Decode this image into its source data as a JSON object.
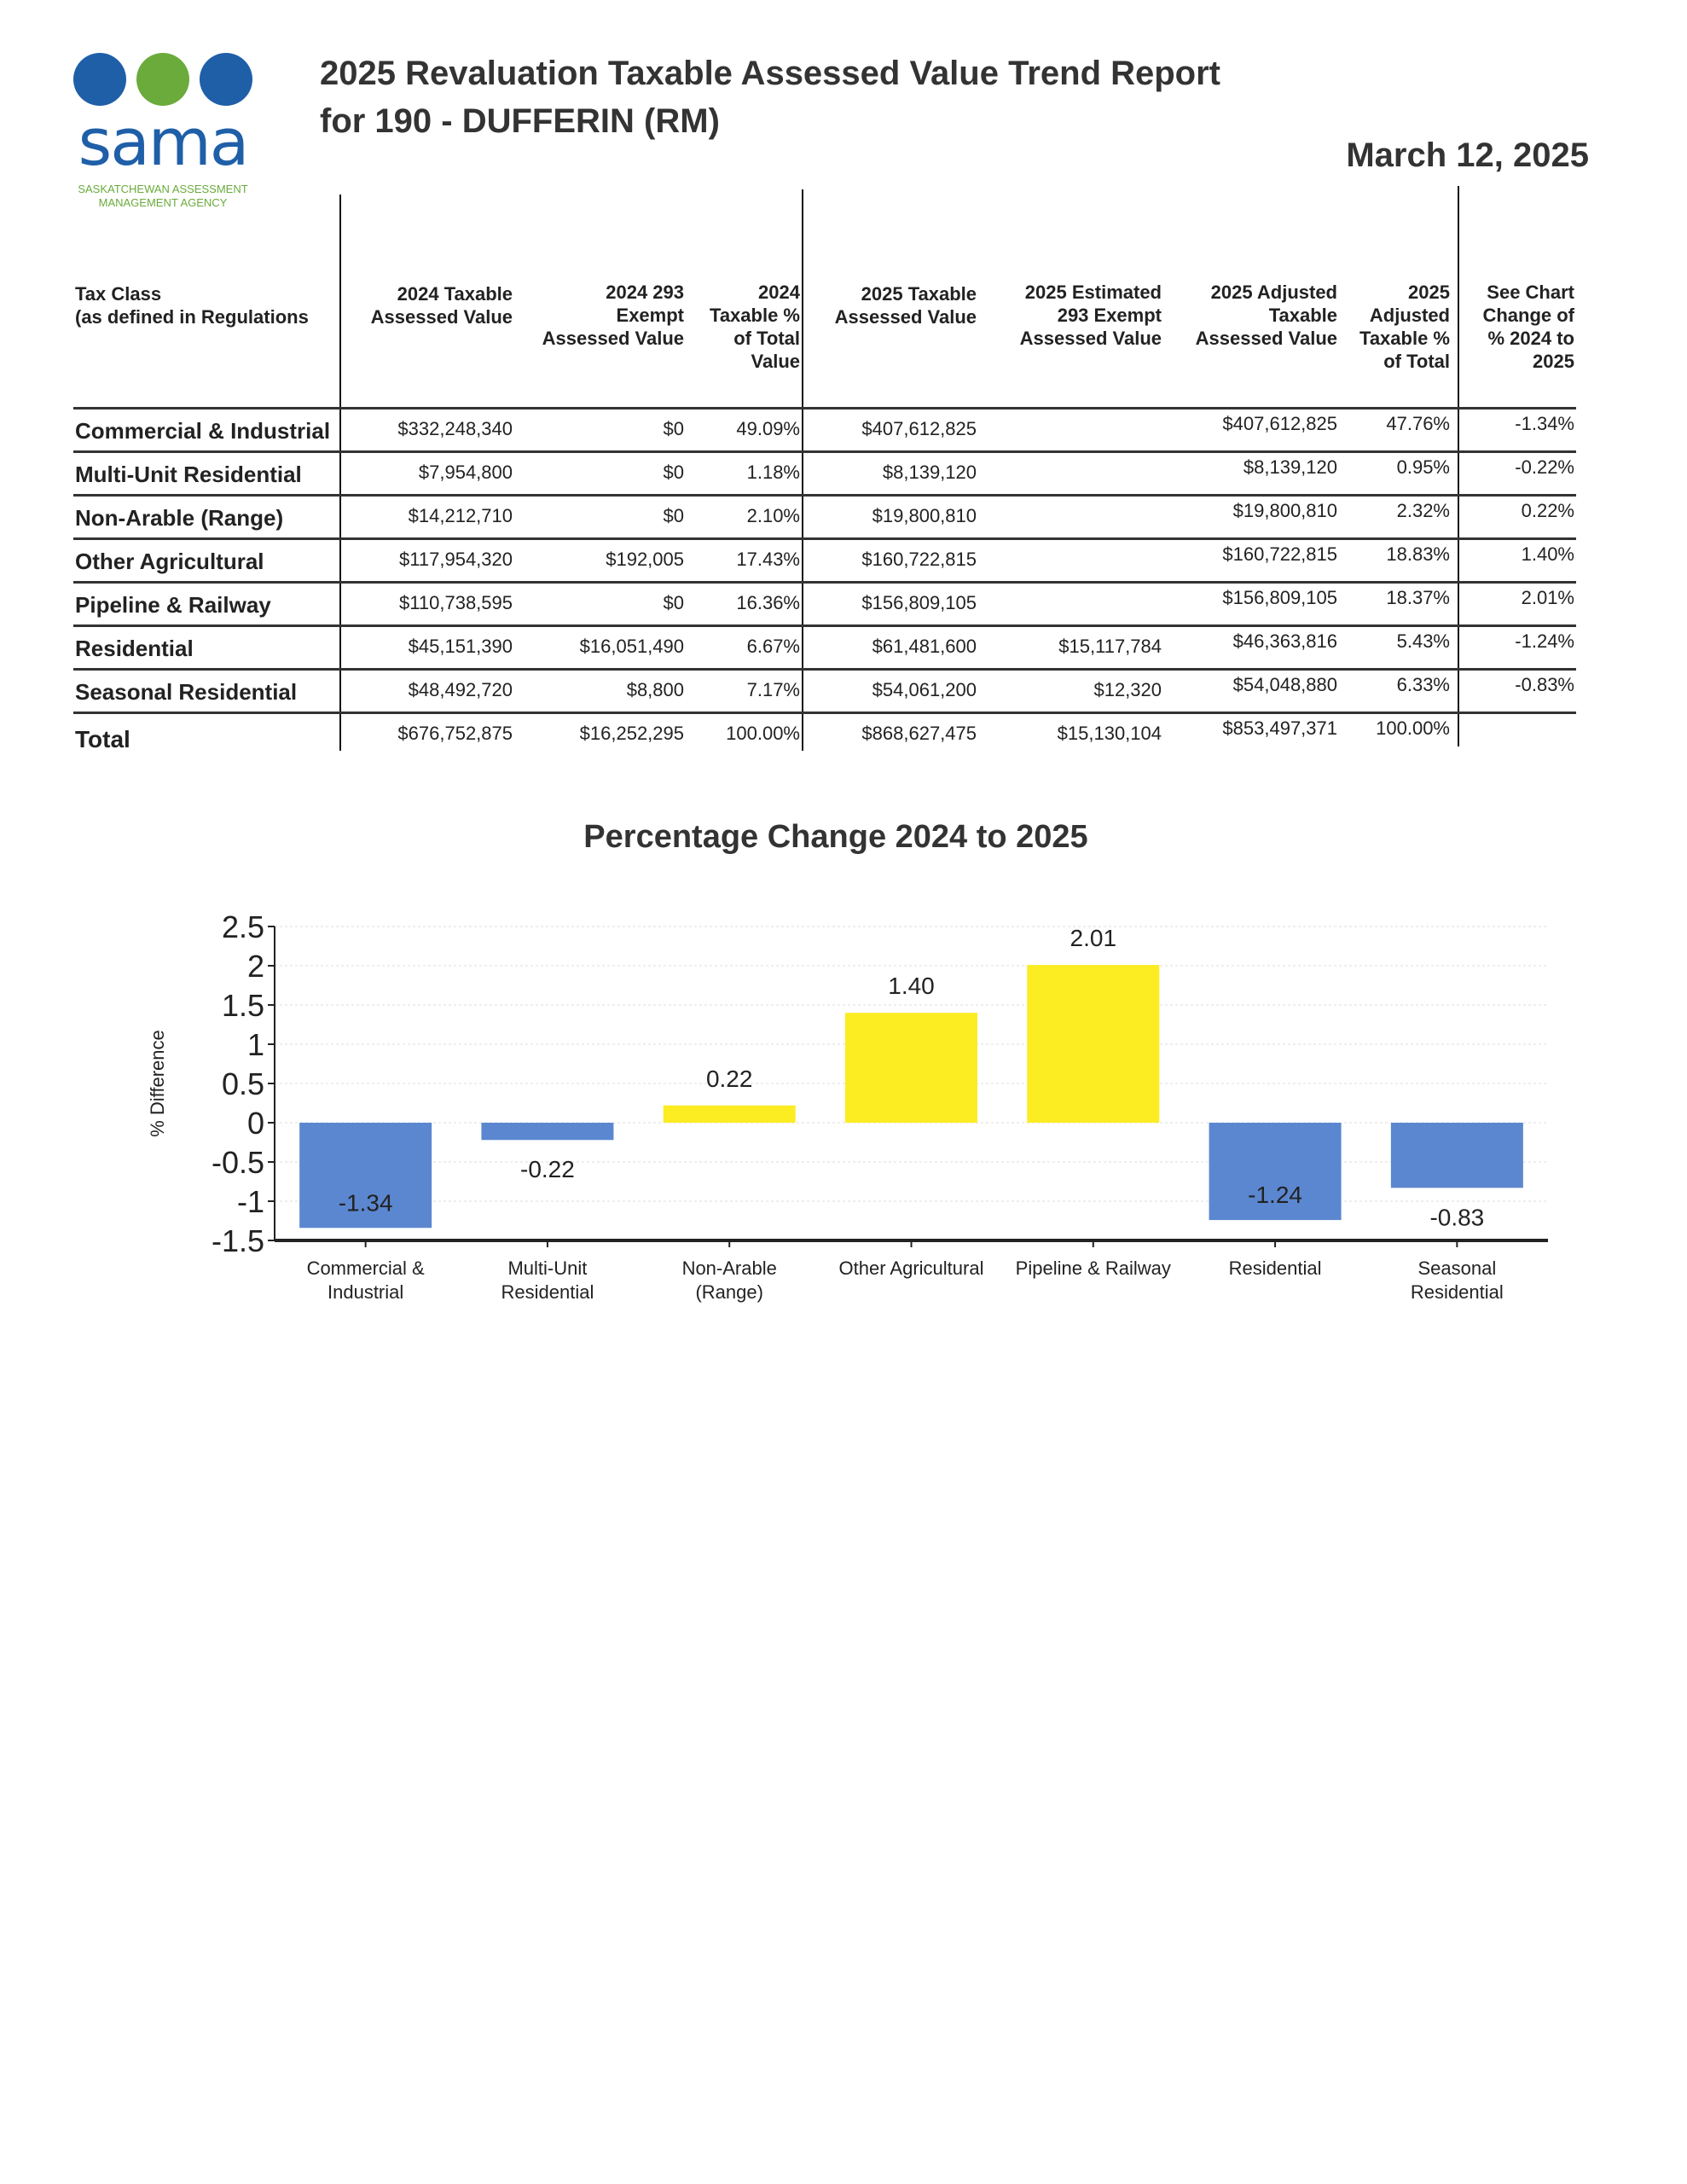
{
  "logo": {
    "word": "sama",
    "subtitle_1": "SASKATCHEWAN ASSESSMENT",
    "subtitle_2": "MANAGEMENT AGENCY"
  },
  "header": {
    "title_line1": "2025 Revaluation Taxable Assessed Value Trend Report",
    "title_line2": "for 190 - DUFFERIN (RM)",
    "date": "March 12, 2025"
  },
  "table": {
    "columns": [
      [
        "Tax Class",
        "(as defined in Regulations"
      ],
      [
        "2024 Taxable",
        "Assessed Value"
      ],
      [
        "2024 293",
        "Exempt",
        "Assessed Value"
      ],
      [
        "2024",
        "Taxable %",
        "of Total",
        "Value"
      ],
      [
        "2025 Taxable",
        "Assessed Value"
      ],
      [
        "2025 Estimated",
        "293 Exempt",
        "Assessed Value"
      ],
      [
        "2025 Adjusted",
        "Taxable",
        "Assessed Value"
      ],
      [
        "2025",
        "Adjusted",
        "Taxable %",
        "of Total"
      ],
      [
        "See Chart",
        "Change of",
        "% 2024 to",
        "2025"
      ]
    ],
    "rows": [
      [
        "Commercial & Industrial",
        "$332,248,340",
        "$0",
        "49.09%",
        "$407,612,825",
        "",
        "$407,612,825",
        "47.76%",
        "-1.34%"
      ],
      [
        "Multi-Unit Residential",
        "$7,954,800",
        "$0",
        "1.18%",
        "$8,139,120",
        "",
        "$8,139,120",
        "0.95%",
        "-0.22%"
      ],
      [
        "Non-Arable (Range)",
        "$14,212,710",
        "$0",
        "2.10%",
        "$19,800,810",
        "",
        "$19,800,810",
        "2.32%",
        "0.22%"
      ],
      [
        "Other Agricultural",
        "$117,954,320",
        "$192,005",
        "17.43%",
        "$160,722,815",
        "",
        "$160,722,815",
        "18.83%",
        "1.40%"
      ],
      [
        "Pipeline & Railway",
        "$110,738,595",
        "$0",
        "16.36%",
        "$156,809,105",
        "",
        "$156,809,105",
        "18.37%",
        "2.01%"
      ],
      [
        "Residential",
        "$45,151,390",
        "$16,051,490",
        "6.67%",
        "$61,481,600",
        "$15,117,784",
        "$46,363,816",
        "5.43%",
        "-1.24%"
      ],
      [
        "Seasonal Residential",
        "$48,492,720",
        "$8,800",
        "7.17%",
        "$54,061,200",
        "$12,320",
        "$54,048,880",
        "6.33%",
        "-0.83%"
      ],
      [
        "Total",
        "$676,752,875",
        "$16,252,295",
        "100.00%",
        "$868,627,475",
        "$15,130,104",
        "$853,497,371",
        "100.00%",
        ""
      ]
    ]
  },
  "chart_data": {
    "type": "bar",
    "title": "Percentage Change 2024 to 2025",
    "xlabel": "",
    "ylabel": "% Difference",
    "ylim": [
      -1.5,
      2.5
    ],
    "yticks": [
      "2.5",
      "2",
      "1.5",
      "1",
      "0.5",
      "0",
      "-0.5",
      "-1",
      "-1.5"
    ],
    "ytick_values": [
      2.5,
      2,
      1.5,
      1,
      0.5,
      0,
      -0.5,
      -1,
      -1.5
    ],
    "grid": true,
    "categories": [
      [
        "Commercial &",
        "Industrial"
      ],
      [
        "Multi-Unit",
        "Residential"
      ],
      [
        "Non-Arable",
        "(Range)"
      ],
      [
        "Other Agricultural"
      ],
      [
        "Pipeline & Railway"
      ],
      [
        "Residential"
      ],
      [
        "Seasonal",
        "Residential"
      ]
    ],
    "values": [
      -1.34,
      -0.22,
      0.22,
      1.4,
      2.01,
      -1.24,
      -0.83
    ],
    "labels": [
      "-1.34",
      "-0.22",
      "0.22",
      "1.40",
      "2.01",
      "-1.24",
      "-0.83"
    ],
    "colors": {
      "positive": "#fcec22",
      "negative": "#5b87d0"
    }
  }
}
